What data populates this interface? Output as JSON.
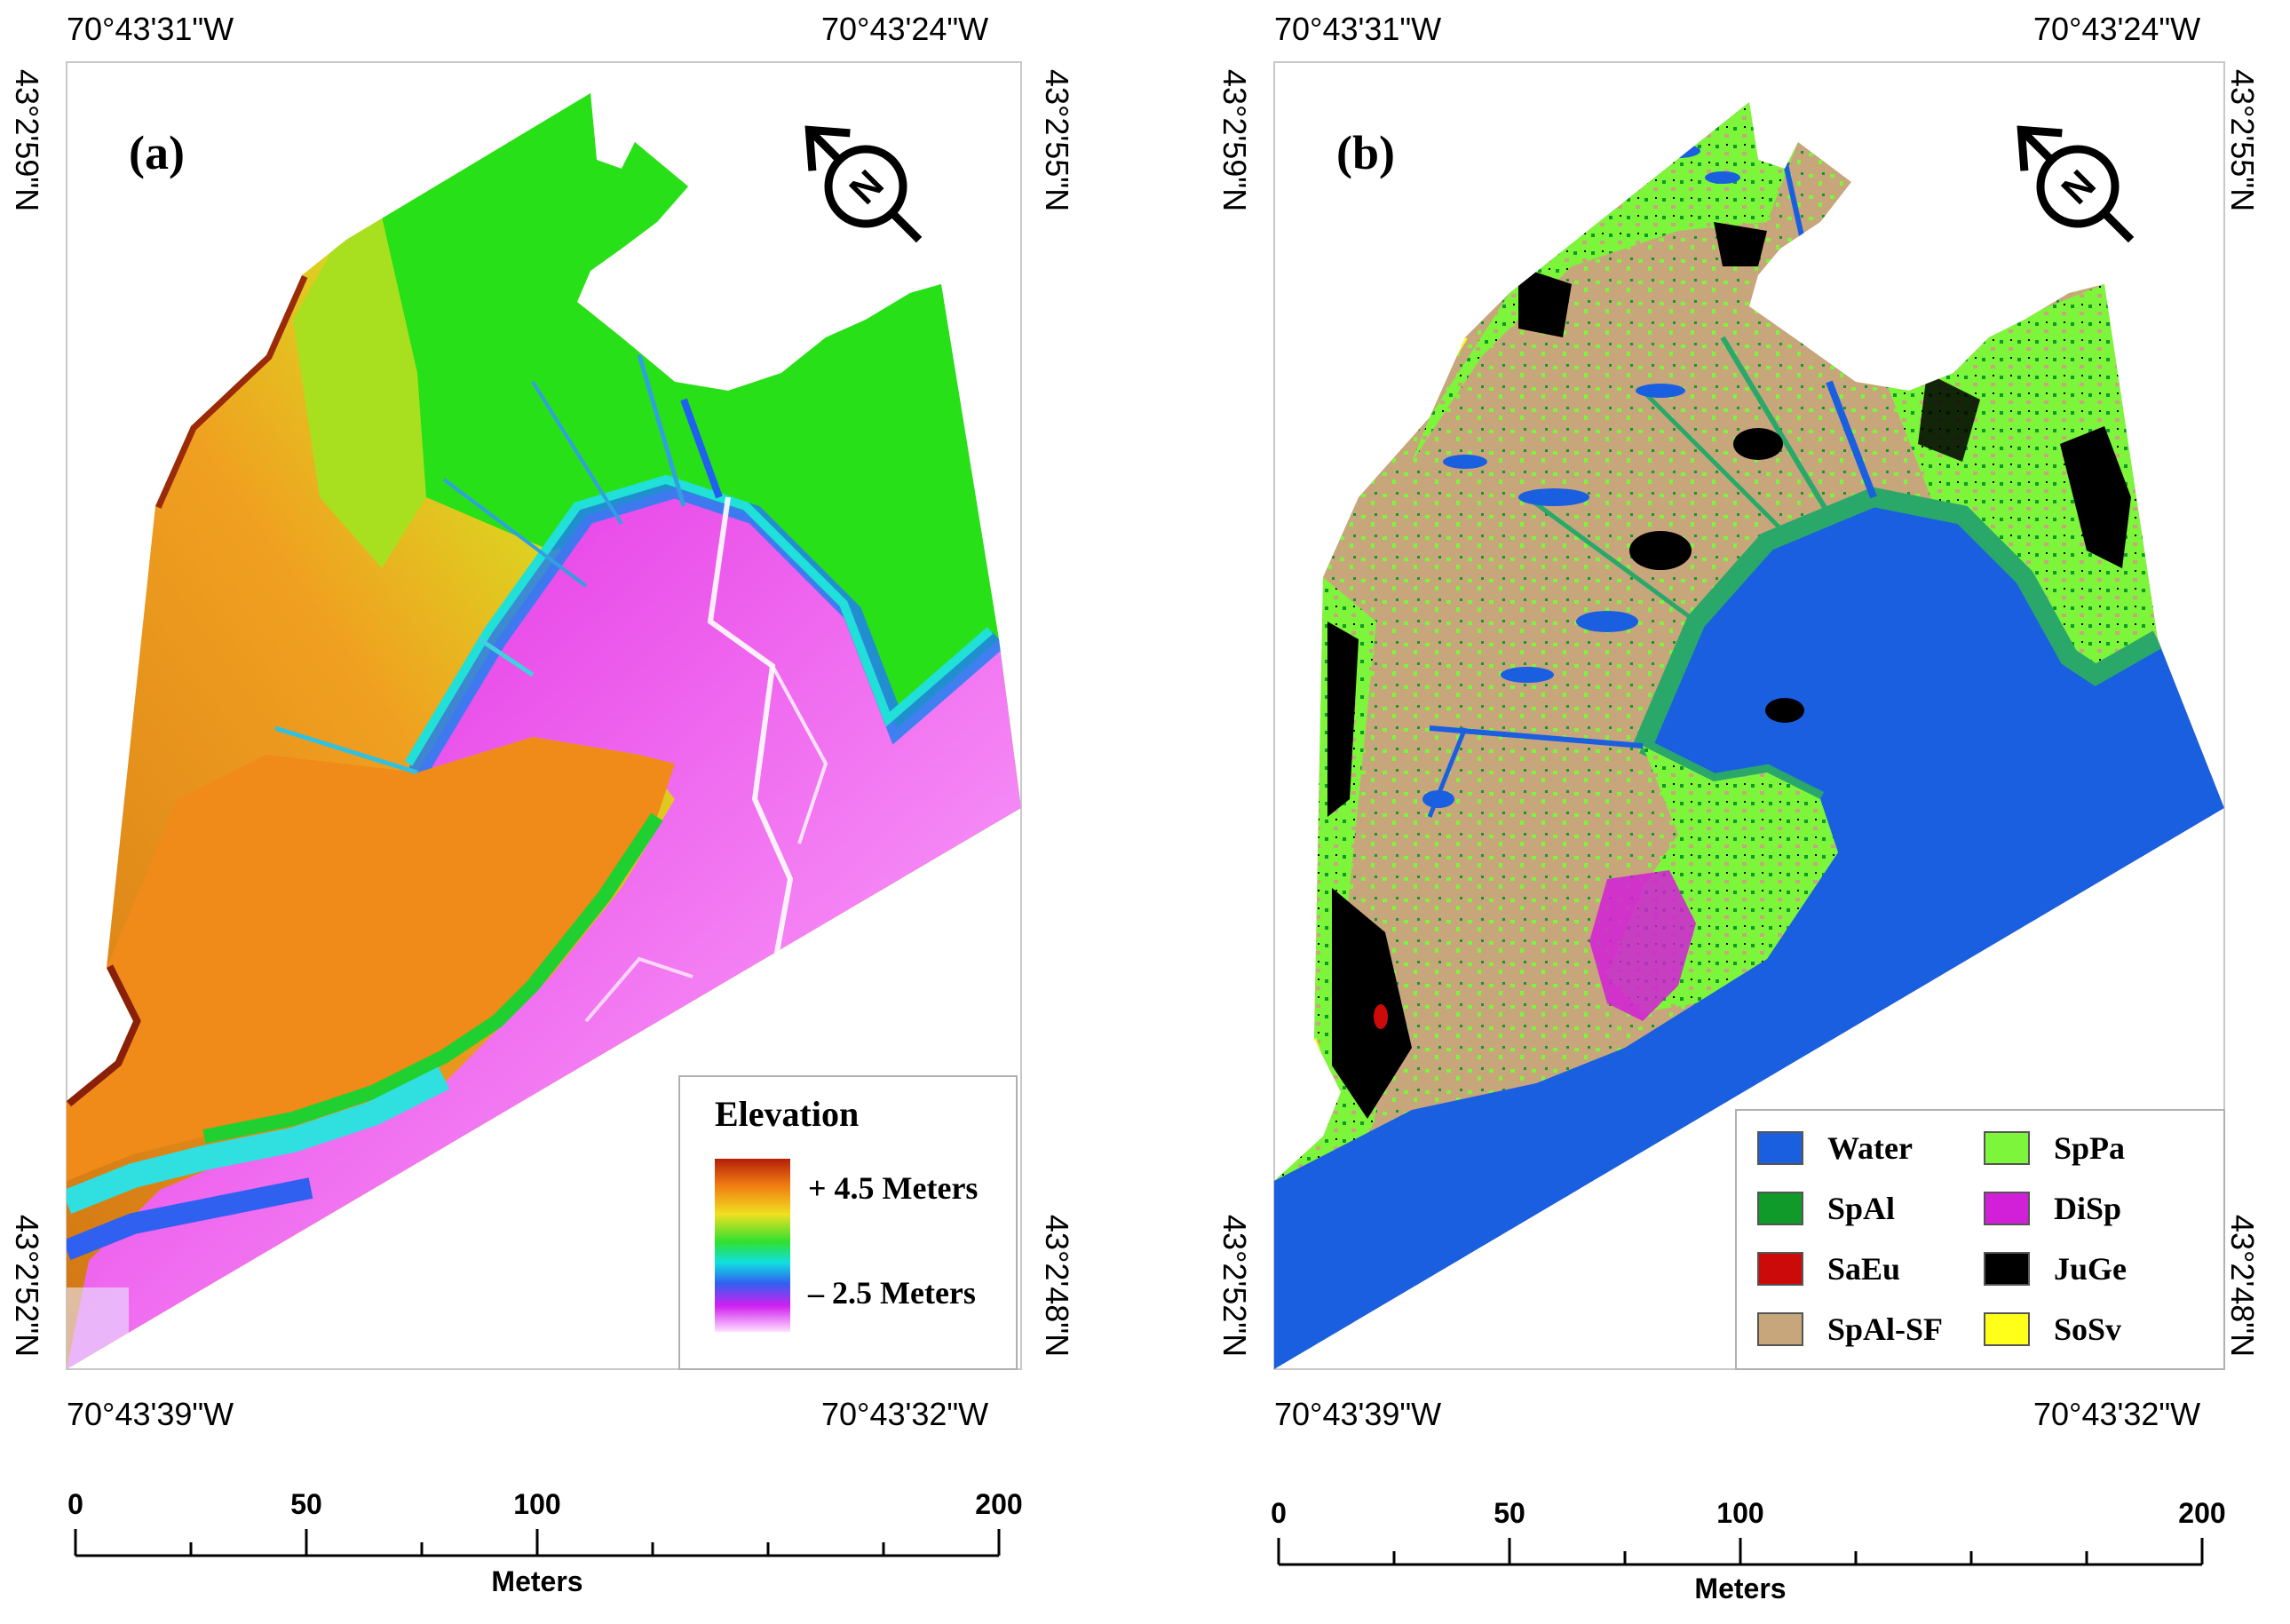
{
  "panel_a": {
    "label": "(a)",
    "coords": {
      "top_left": "70°43'31\"W",
      "top_right": "70°43'24\"W",
      "bottom_left": "70°43'39\"W",
      "bottom_right": "70°43'32\"W",
      "left_top": "43°2'59\"N",
      "left_bottom": "43°2'52\"N",
      "right_top": "43°2'55\"N",
      "right_bottom": "43°2'48\"N"
    },
    "legend": {
      "title": "Elevation",
      "max_label": "+ 4.5 Meters",
      "min_label": "– 2.5 Meters"
    },
    "scale": {
      "ticks": [
        "0",
        "50",
        "100",
        "200"
      ],
      "unit": "Meters"
    }
  },
  "panel_b": {
    "label": "(b)",
    "coords": {
      "top_left": "70°43'31\"W",
      "top_right": "70°43'24\"W",
      "bottom_left": "70°43'39\"W",
      "bottom_right": "70°43'32\"W",
      "left_top": "43°2'59\"N",
      "left_bottom": "43°2'52\"N",
      "right_top": "43°2'55\"N",
      "right_bottom": "43°2'48\"N"
    },
    "legend": [
      {
        "label": "Water",
        "color": "#1a5fe0"
      },
      {
        "label": "SpAl",
        "color": "#0f9a2a"
      },
      {
        "label": "SaEu",
        "color": "#cc0a0a"
      },
      {
        "label": "SpAl-SF",
        "color": "#c8a67c"
      },
      {
        "label": "SpPa",
        "color": "#7df53a"
      },
      {
        "label": "DiSp",
        "color": "#d21fd8"
      },
      {
        "label": "JuGe",
        "color": "#000000"
      },
      {
        "label": "SoSv",
        "color": "#ffff1a"
      }
    ],
    "scale": {
      "ticks": [
        "0",
        "50",
        "100",
        "200"
      ],
      "unit": "Meters"
    }
  },
  "north_arrow": {
    "label": "N"
  }
}
